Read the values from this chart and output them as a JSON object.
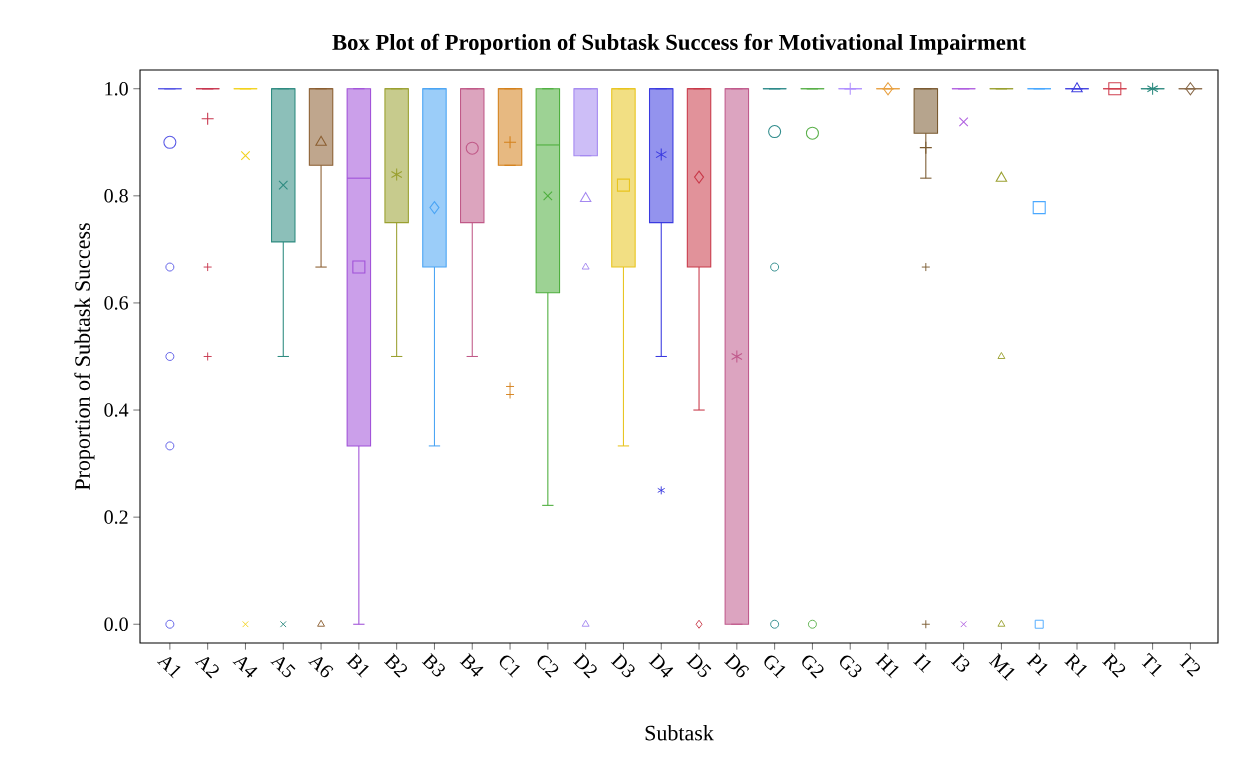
{
  "chart_data": {
    "type": "box",
    "title": "**Box Plot of Proportion of Subtask Success for Motivational Impairment**",
    "xlabel": "Subtask",
    "ylabel": "Proportion of Subtask Success",
    "categories": [
      "A1",
      "A2",
      "A4",
      "A5",
      "A6",
      "B1",
      "B2",
      "B3",
      "B4",
      "C1",
      "C2",
      "D2",
      "D3",
      "D4",
      "D5",
      "D6",
      "G1",
      "G2",
      "G3",
      "H1",
      "I1",
      "I3",
      "M1",
      "P1",
      "R1",
      "R2",
      "T1",
      "T2"
    ],
    "colors": [
      "#5a5ae6",
      "#c8364e",
      "#f2d21e",
      "#2e8b80",
      "#8b5e30",
      "#a050d8",
      "#9aa030",
      "#4aa4f4",
      "#c05a88",
      "#d4801a",
      "#4cae3c",
      "#a488f0",
      "#e8c41e",
      "#3a3ae0",
      "#c83848",
      "#c05a8c",
      "#2e8b8b",
      "#5ab04a",
      "#b090ff",
      "#e8a040",
      "#7a5a30",
      "#b060e0",
      "#9aa030",
      "#4aa8ff",
      "#4040e0",
      "#d04050",
      "#2e8b80",
      "#8a6a4a"
    ],
    "marker": [
      "circle",
      "plus",
      "cross",
      "cross",
      "triangle",
      "square",
      "star",
      "diamond",
      "circle",
      "plus",
      "cross",
      "triangle",
      "square",
      "star",
      "diamond",
      "star",
      "circle",
      "circle",
      "plus",
      "diamond",
      "plus",
      "cross",
      "triangle",
      "square",
      "triangle",
      "square",
      "star",
      "diamond"
    ],
    "boxes": [
      {
        "low": 1,
        "q1": 1,
        "median": 1,
        "q3": 1,
        "high": 1,
        "mean": 0.9,
        "outliers": [
          0.667,
          0.5,
          0.333,
          0
        ]
      },
      {
        "low": 1,
        "q1": 1,
        "median": 1,
        "q3": 1,
        "high": 1,
        "mean": 0.944,
        "outliers": [
          0.667,
          0.5
        ]
      },
      {
        "low": 1,
        "q1": 1,
        "median": 1,
        "q3": 1,
        "high": 1,
        "mean": 0.875,
        "outliers": [
          0
        ]
      },
      {
        "low": 0.5,
        "q1": 0.714,
        "median": 1,
        "q3": 1,
        "high": 1,
        "mean": 0.82,
        "outliers": [
          0
        ]
      },
      {
        "low": 0.667,
        "q1": 0.857,
        "median": 1,
        "q3": 1,
        "high": 1,
        "mean": 0.9,
        "outliers": [
          0
        ]
      },
      {
        "low": 0,
        "q1": 0.333,
        "median": 0.833,
        "q3": 1,
        "high": 1,
        "mean": 0.667
      },
      {
        "low": 0.5,
        "q1": 0.75,
        "median": 1,
        "q3": 1,
        "high": 1,
        "mean": 0.84
      },
      {
        "low": 0.333,
        "q1": 0.667,
        "median": 1,
        "q3": 1,
        "high": 1,
        "mean": 0.778
      },
      {
        "low": 0.5,
        "q1": 0.75,
        "median": 1,
        "q3": 1,
        "high": 1,
        "mean": 0.889
      },
      {
        "low": 0.857,
        "q1": 0.857,
        "median": 1,
        "q3": 1,
        "high": 1,
        "mean": 0.9,
        "outliers": [
          0.444,
          0.429
        ]
      },
      {
        "low": 0.222,
        "q1": 0.619,
        "median": 0.895,
        "q3": 1,
        "high": 1,
        "mean": 0.8
      },
      {
        "low": 0.875,
        "q1": 0.875,
        "median": 1,
        "q3": 1,
        "high": 1,
        "mean": 0.795,
        "outliers": [
          0.667,
          0
        ]
      },
      {
        "low": 0.333,
        "q1": 0.667,
        "median": 1,
        "q3": 1,
        "high": 1,
        "mean": 0.82
      },
      {
        "low": 0.5,
        "q1": 0.75,
        "median": 1,
        "q3": 1,
        "high": 1,
        "mean": 0.877,
        "outliers": [
          0.25
        ]
      },
      {
        "low": 0.4,
        "q1": 0.667,
        "median": 1,
        "q3": 1,
        "high": 1,
        "mean": 0.835,
        "outliers": [
          0
        ]
      },
      {
        "low": 0,
        "q1": 0,
        "median": 1,
        "q3": 1,
        "high": 1,
        "mean": 0.5
      },
      {
        "low": 1,
        "q1": 1,
        "median": 1,
        "q3": 1,
        "high": 1,
        "mean": 0.92,
        "outliers": [
          0.667,
          0
        ]
      },
      {
        "low": 1,
        "q1": 1,
        "median": 1,
        "q3": 1,
        "high": 1,
        "mean": 0.917,
        "outliers": [
          0
        ]
      },
      {
        "low": 1,
        "q1": 1,
        "median": 1,
        "q3": 1,
        "high": 1,
        "mean": 1
      },
      {
        "low": 1,
        "q1": 1,
        "median": 1,
        "q3": 1,
        "high": 1,
        "mean": 1
      },
      {
        "low": 0.833,
        "q1": 0.917,
        "median": 1,
        "q3": 1,
        "high": 1,
        "mean": 0.89,
        "outliers": [
          0.667,
          0
        ]
      },
      {
        "low": 1,
        "q1": 1,
        "median": 1,
        "q3": 1,
        "high": 1,
        "mean": 0.938,
        "outliers": [
          0
        ]
      },
      {
        "low": 1,
        "q1": 1,
        "median": 1,
        "q3": 1,
        "high": 1,
        "mean": 0.833,
        "outliers": [
          0.5,
          0
        ]
      },
      {
        "low": 1,
        "q1": 1,
        "median": 1,
        "q3": 1,
        "high": 1,
        "mean": 0.778,
        "outliers": [
          0
        ]
      },
      {
        "low": 1,
        "q1": 1,
        "median": 1,
        "q3": 1,
        "high": 1,
        "mean": 1
      },
      {
        "low": 1,
        "q1": 1,
        "median": 1,
        "q3": 1,
        "high": 1,
        "mean": 1
      },
      {
        "low": 1,
        "q1": 1,
        "median": 1,
        "q3": 1,
        "high": 1,
        "mean": 1
      },
      {
        "low": 1,
        "q1": 1,
        "median": 1,
        "q3": 1,
        "high": 1,
        "mean": 1
      }
    ],
    "ylim": [
      -0.035,
      1.035
    ],
    "yticks": [
      {
        "value": 0,
        "label": "0.0"
      },
      {
        "value": 0.2,
        "label": "0.2"
      },
      {
        "value": 0.4,
        "label": "0.4"
      },
      {
        "value": 0.6,
        "label": "0.6"
      },
      {
        "value": 0.8,
        "label": "0.8"
      },
      {
        "value": 1,
        "label": "1.0"
      }
    ]
  }
}
